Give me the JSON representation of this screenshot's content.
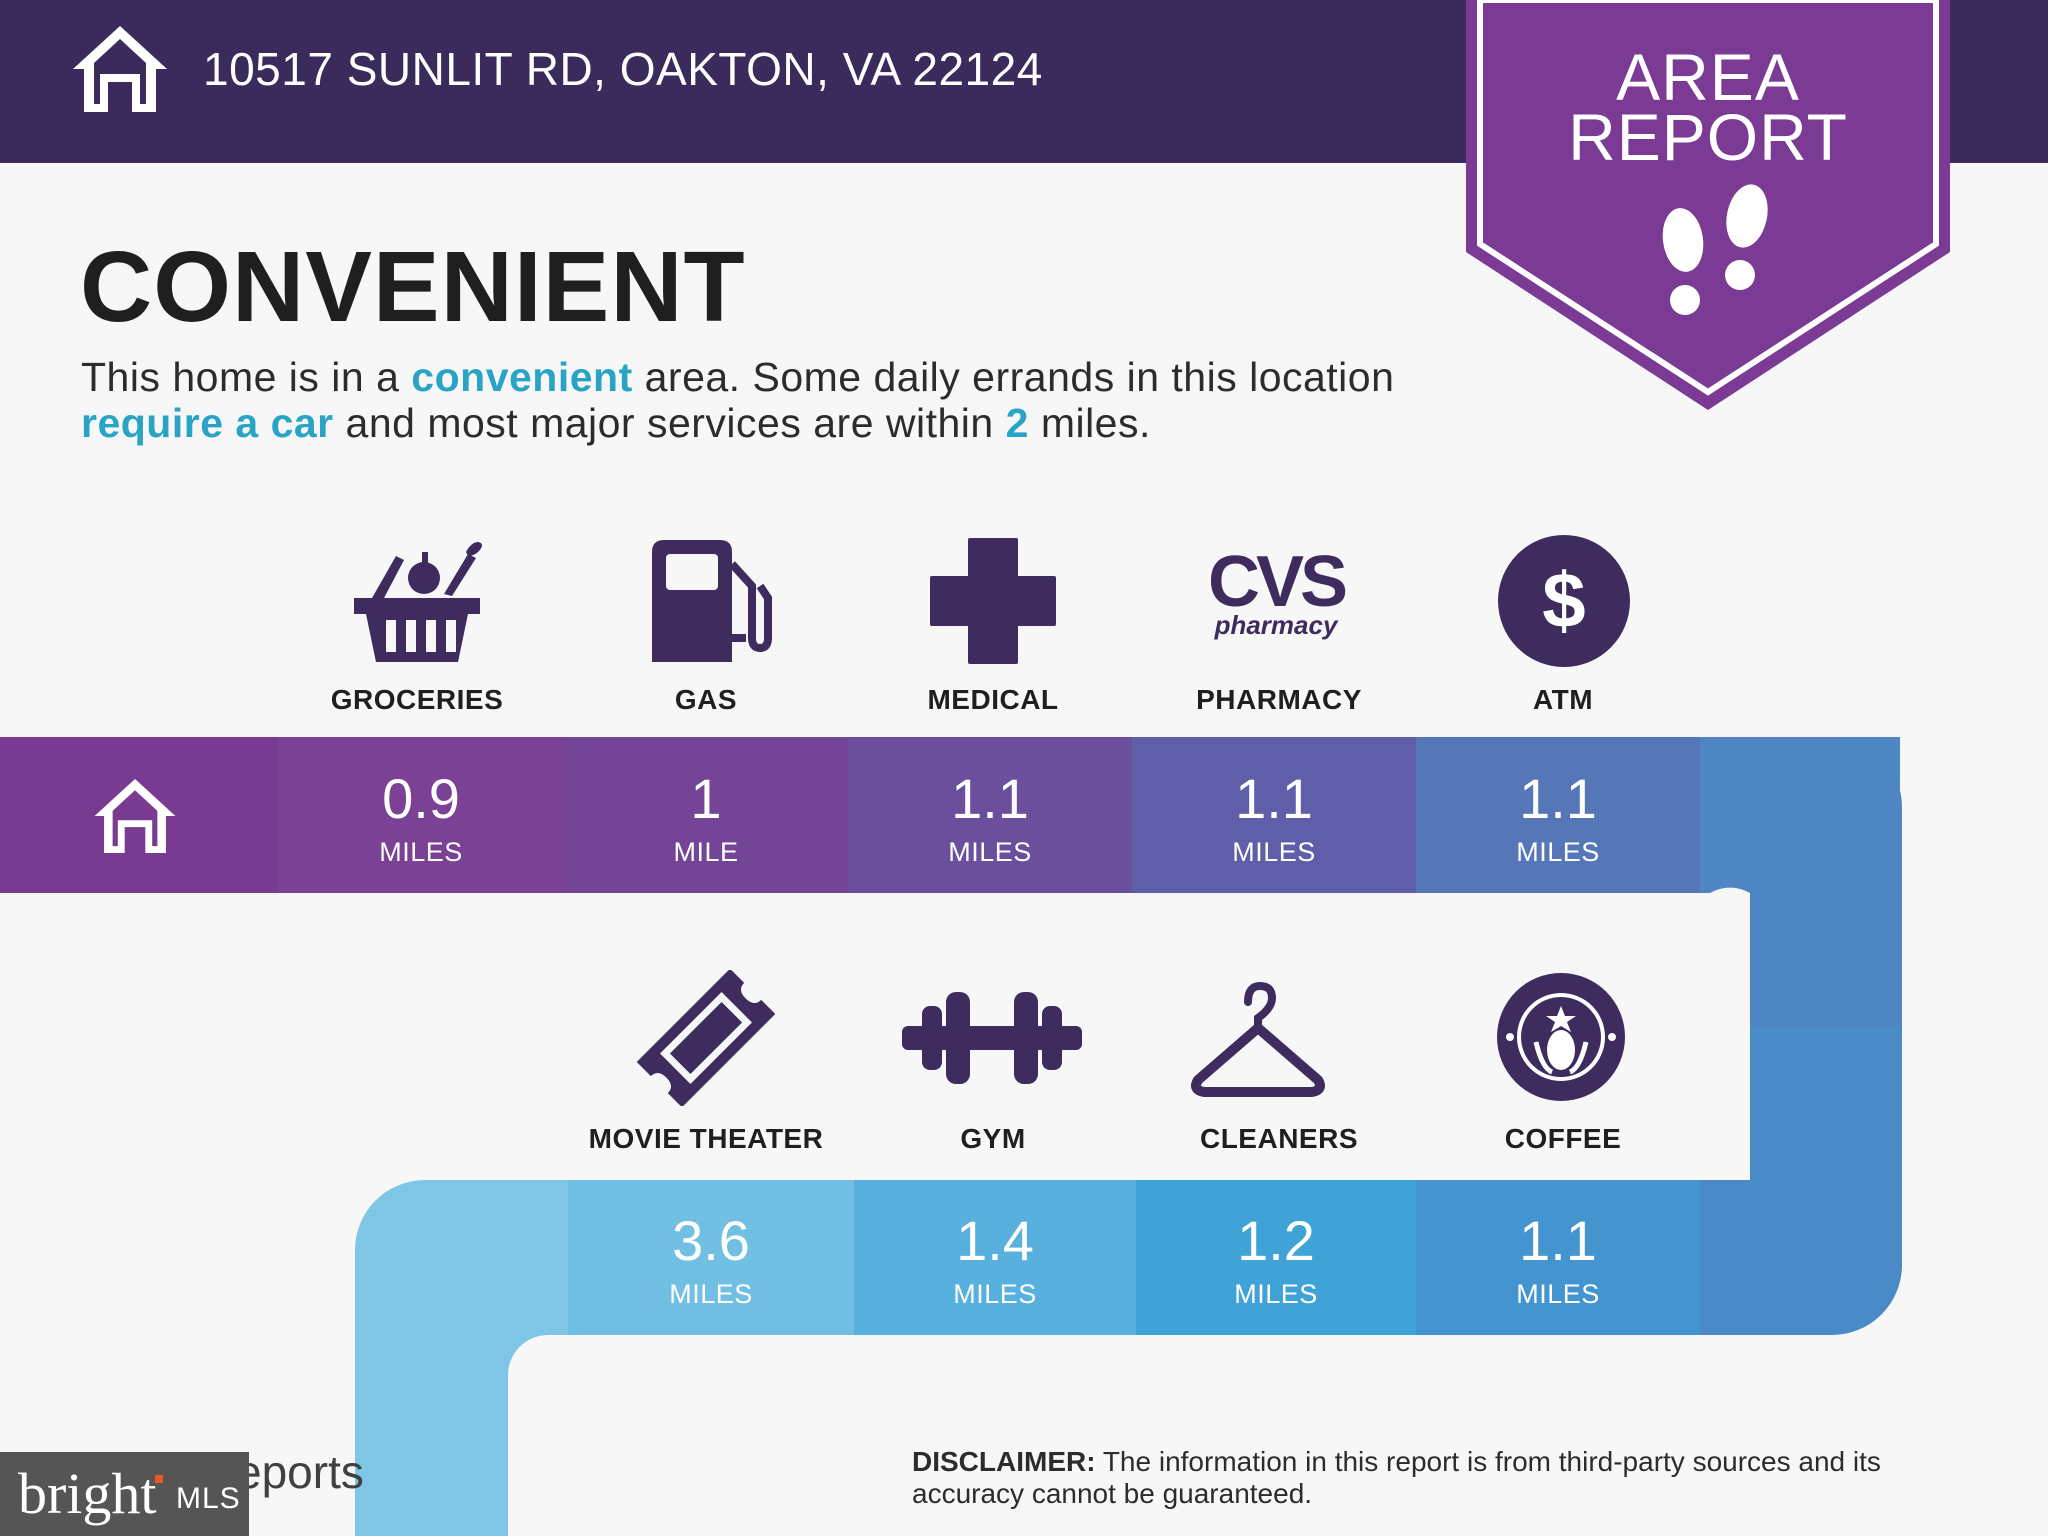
{
  "header": {
    "address": "10517 SUNLIT RD, OAKTON, VA 22124",
    "icon": "home-icon"
  },
  "badge": {
    "line1": "AREA",
    "line2": "REPORT",
    "icon": "footsteps-icon",
    "color": "#7b3b94"
  },
  "intro": {
    "title": "CONVENIENT",
    "text_1": "This home is in a ",
    "highlight_1": "convenient",
    "text_2": " area. Some daily errands in this location ",
    "highlight_2": "require a car",
    "text_3": " and most major services are within ",
    "highlight_3": "2",
    "text_4": " miles."
  },
  "services_row1": [
    {
      "label": "GROCERIES",
      "distance": "0.9",
      "unit": "MILES",
      "icon": "grocery-basket-icon"
    },
    {
      "label": "GAS",
      "distance": "1",
      "unit": "MILE",
      "icon": "gas-pump-icon"
    },
    {
      "label": "MEDICAL",
      "distance": "1.1",
      "unit": "MILES",
      "icon": "medical-cross-icon"
    },
    {
      "label": "PHARMACY",
      "distance": "1.1",
      "unit": "MILES",
      "icon": "cvs-pharmacy-logo",
      "logo_text": "CVS",
      "logo_subtext": "pharmacy"
    },
    {
      "label": "ATM",
      "distance": "1.1",
      "unit": "MILES",
      "icon": "dollar-icon",
      "logo_text": "$"
    }
  ],
  "services_row2": [
    {
      "label": "MOVIE THEATER",
      "distance": "3.6",
      "unit": "MILES",
      "icon": "ticket-icon"
    },
    {
      "label": "GYM",
      "distance": "1.4",
      "unit": "MILES",
      "icon": "dumbbell-icon"
    },
    {
      "label": "CLEANERS",
      "distance": "1.2",
      "unit": "MILES",
      "icon": "hanger-icon"
    },
    {
      "label": "COFFEE",
      "distance": "1.1",
      "unit": "MILES",
      "icon": "starbucks-logo"
    }
  ],
  "footer": {
    "disclaimer_label": "DISCLAIMER:",
    "disclaimer_text": " The information in this report is from third-party sources and its accuracy cannot be guaranteed.",
    "reports_partial": "eports",
    "watermark_word": "bright",
    "watermark_mls": "MLS"
  },
  "colors": {
    "header_bg": "#3b2a5c",
    "icon_purple": "#3e2c5f",
    "highlight": "#2aa4c6",
    "row1_gradient": [
      "#783b91",
      "#7a4194",
      "#6f4b9a",
      "#6457a6",
      "#5877b8",
      "#4d86c2"
    ],
    "row2_gradient": [
      "#7ec5e6",
      "#64b7e1",
      "#4ea8db",
      "#3e9fd6",
      "#4693ce",
      "#4a8bc7"
    ]
  }
}
